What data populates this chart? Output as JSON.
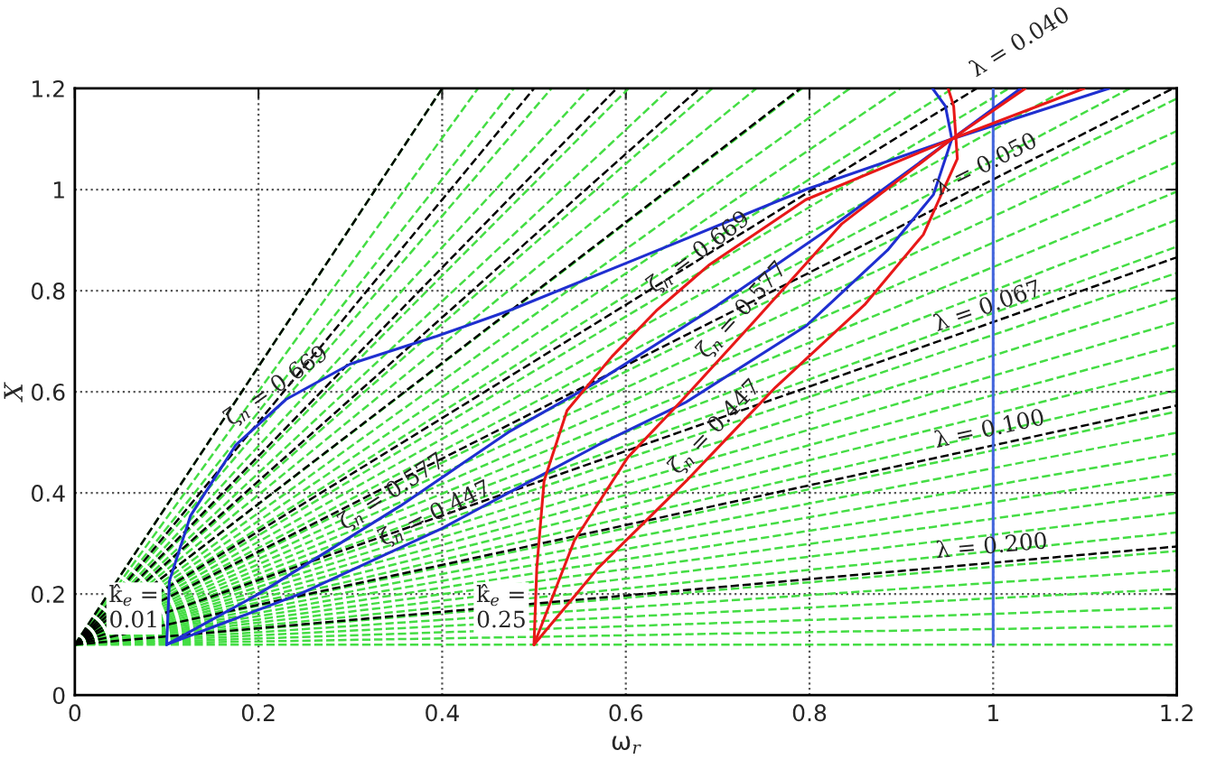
{
  "chart_data": {
    "type": "line",
    "xlabel": "ω$_{r}$",
    "ylabel": "X",
    "xlim": [
      0,
      1.2
    ],
    "ylim": [
      0,
      1.2
    ],
    "xticks": [
      0,
      0.2,
      0.4,
      0.6,
      0.8,
      1,
      1.2
    ],
    "yticks": [
      0,
      0.2,
      0.4,
      0.6,
      0.8,
      1,
      1.2
    ],
    "grid": true,
    "series": [
      {
        "color": "#44dd44",
        "line_style": "dashed",
        "x": [
          0,
          1.2
        ],
        "values": [
          0.1,
          0.1
        ]
      },
      {
        "color": "#44dd44",
        "line_style": "dashed",
        "x": [
          0,
          1.2
        ],
        "values": [
          0.1,
          0.137
        ]
      },
      {
        "color": "#44dd44",
        "line_style": "dashed",
        "x": [
          0,
          1.2
        ],
        "values": [
          0.1,
          0.173
        ]
      },
      {
        "color": "#44dd44",
        "line_style": "dashed",
        "x": [
          0,
          1.2
        ],
        "values": [
          0.1,
          0.21
        ]
      },
      {
        "color": "#44dd44",
        "line_style": "dashed",
        "x": [
          0,
          1.2
        ],
        "values": [
          0.1,
          0.247
        ]
      },
      {
        "color": "#44dd44",
        "line_style": "dashed",
        "x": [
          0,
          1.2
        ],
        "values": [
          0.1,
          0.285
        ]
      },
      {
        "color": "#44dd44",
        "line_style": "dashed",
        "x": [
          0,
          1.2
        ],
        "values": [
          0.1,
          0.322
        ]
      },
      {
        "color": "#44dd44",
        "line_style": "dashed",
        "x": [
          0,
          1.2
        ],
        "values": [
          0.1,
          0.361
        ]
      },
      {
        "color": "#44dd44",
        "line_style": "dashed",
        "x": [
          0,
          1.2
        ],
        "values": [
          0.1,
          0.399
        ]
      },
      {
        "color": "#44dd44",
        "line_style": "dashed",
        "x": [
          0,
          1.2
        ],
        "values": [
          0.1,
          0.438
        ]
      },
      {
        "color": "#44dd44",
        "line_style": "dashed",
        "x": [
          0,
          1.2
        ],
        "values": [
          0.1,
          0.478
        ]
      },
      {
        "color": "#44dd44",
        "line_style": "dashed",
        "x": [
          0,
          1.2
        ],
        "values": [
          0.1,
          0.519
        ]
      },
      {
        "color": "#44dd44",
        "line_style": "dashed",
        "x": [
          0,
          1.2
        ],
        "values": [
          0.1,
          0.561
        ]
      },
      {
        "color": "#44dd44",
        "line_style": "dashed",
        "x": [
          0,
          1.2
        ],
        "values": [
          0.1,
          0.603
        ]
      },
      {
        "color": "#44dd44",
        "line_style": "dashed",
        "x": [
          0,
          1.2
        ],
        "values": [
          0.1,
          0.647
        ]
      },
      {
        "color": "#44dd44",
        "line_style": "dashed",
        "x": [
          0,
          1.2
        ],
        "values": [
          0.1,
          0.692
        ]
      },
      {
        "color": "#44dd44",
        "line_style": "dashed",
        "x": [
          0,
          1.2
        ],
        "values": [
          0.1,
          0.738
        ]
      },
      {
        "color": "#44dd44",
        "line_style": "dashed",
        "x": [
          0,
          1.2
        ],
        "values": [
          0.1,
          0.786
        ]
      },
      {
        "color": "#44dd44",
        "line_style": "dashed",
        "x": [
          0,
          1.2
        ],
        "values": [
          0.1,
          0.835
        ]
      },
      {
        "color": "#44dd44",
        "line_style": "dashed",
        "x": [
          0,
          1.2
        ],
        "values": [
          0.1,
          0.887
        ]
      },
      {
        "color": "#44dd44",
        "line_style": "dashed",
        "x": [
          0,
          1.2
        ],
        "values": [
          0.1,
          0.94
        ]
      },
      {
        "color": "#44dd44",
        "line_style": "dashed",
        "x": [
          0,
          1.2
        ],
        "values": [
          0.1,
          0.996
        ]
      },
      {
        "color": "#44dd44",
        "line_style": "dashed",
        "x": [
          0,
          1.2
        ],
        "values": [
          0.1,
          1.054
        ]
      },
      {
        "color": "#44dd44",
        "line_style": "dashed",
        "x": [
          0,
          1.2
        ],
        "values": [
          0.1,
          1.116
        ]
      },
      {
        "color": "#44dd44",
        "line_style": "dashed",
        "x": [
          0,
          1.2
        ],
        "values": [
          0.1,
          1.18
        ]
      },
      {
        "color": "#44dd44",
        "line_style": "dashed",
        "x": [
          0,
          1.149
        ],
        "values": [
          0.1,
          1.2
        ]
      },
      {
        "color": "#44dd44",
        "line_style": "dashed",
        "x": [
          0,
          1.081
        ],
        "values": [
          0.1,
          1.2
        ]
      },
      {
        "color": "#44dd44",
        "line_style": "dashed",
        "x": [
          0,
          1.017
        ],
        "values": [
          0.1,
          1.2
        ]
      },
      {
        "color": "#44dd44",
        "line_style": "dashed",
        "x": [
          0,
          0.956
        ],
        "values": [
          0.1,
          1.2
        ]
      },
      {
        "color": "#44dd44",
        "line_style": "dashed",
        "x": [
          0,
          0.899
        ],
        "values": [
          0.1,
          1.2
        ]
      },
      {
        "color": "#44dd44",
        "line_style": "dashed",
        "x": [
          0,
          0.844
        ],
        "values": [
          0.1,
          1.2
        ]
      },
      {
        "color": "#44dd44",
        "line_style": "dashed",
        "x": [
          0,
          0.792
        ],
        "values": [
          0.1,
          1.2
        ]
      },
      {
        "color": "#44dd44",
        "line_style": "dashed",
        "x": [
          0,
          0.742
        ],
        "values": [
          0.1,
          1.2
        ]
      },
      {
        "color": "#44dd44",
        "line_style": "dashed",
        "x": [
          0,
          0.694
        ],
        "values": [
          0.1,
          1.2
        ]
      },
      {
        "color": "#44dd44",
        "line_style": "dashed",
        "x": [
          0,
          0.648
        ],
        "values": [
          0.1,
          1.2
        ]
      },
      {
        "color": "#44dd44",
        "line_style": "dashed",
        "x": [
          0,
          0.603
        ],
        "values": [
          0.1,
          1.2
        ]
      },
      {
        "color": "#44dd44",
        "line_style": "dashed",
        "x": [
          0,
          0.56
        ],
        "values": [
          0.1,
          1.2
        ]
      },
      {
        "color": "#44dd44",
        "line_style": "dashed",
        "x": [
          0,
          0.519
        ],
        "values": [
          0.1,
          1.2
        ]
      },
      {
        "color": "#44dd44",
        "line_style": "dashed",
        "x": [
          0,
          0.478
        ],
        "values": [
          0.1,
          1.2
        ]
      },
      {
        "color": "#44dd44",
        "line_style": "dashed",
        "x": [
          0,
          0.439
        ],
        "values": [
          0.1,
          1.2
        ]
      },
      {
        "color": "#44dd44",
        "line_style": "dashed",
        "x": [
          0,
          0.4
        ],
        "values": [
          0.1,
          1.2
        ]
      },
      {
        "color": "#000000",
        "line_style": "dashed",
        "x": [
          0,
          0.79
        ],
        "values": [
          0.1,
          1.2
        ]
      },
      {
        "color": "#000000",
        "line_style": "dashed",
        "x": [
          0,
          0.68
        ],
        "values": [
          0.1,
          1.2
        ]
      },
      {
        "color": "#000000",
        "line_style": "dashed",
        "x": [
          0,
          0.59
        ],
        "values": [
          0.1,
          1.2
        ]
      },
      {
        "color": "#000000",
        "line_style": "dashed",
        "x": [
          0,
          0.5
        ],
        "values": [
          0.1,
          1.2
        ]
      },
      {
        "color": "#000000",
        "line_style": "dashed",
        "x": [
          0,
          0.4
        ],
        "values": [
          0.1,
          1.2
        ]
      },
      {
        "color": "#000000",
        "line_style": "dashed",
        "x": [
          0,
          1.0,
          1.2
        ],
        "values": [
          0.1,
          0.262,
          0.294
        ]
      },
      {
        "color": "#000000",
        "line_style": "dashed",
        "x": [
          0,
          1.0,
          1.2
        ],
        "values": [
          0.1,
          0.494,
          0.573
        ]
      },
      {
        "color": "#000000",
        "line_style": "dashed",
        "x": [
          0,
          1.0,
          1.2
        ],
        "values": [
          0.1,
          0.738,
          0.866
        ]
      },
      {
        "color": "#000000",
        "line_style": "dashed",
        "x": [
          0,
          1.0,
          1.196
        ],
        "values": [
          0.1,
          1.02,
          1.2
        ]
      },
      {
        "color": "#000000",
        "line_style": "dashed",
        "x": [
          0,
          0.982
        ],
        "values": [
          0.1,
          1.2
        ]
      },
      {
        "color": "#4466dd",
        "line_style": "solid",
        "x": [
          1,
          1
        ],
        "values": [
          0.1,
          1.2
        ]
      },
      {
        "color": "#1f2fd0",
        "line_style": "solid",
        "x": [
          0.1,
          0.103,
          0.126,
          0.175,
          0.23,
          0.3,
          0.394,
          0.472,
          0.608,
          0.796,
          0.955,
          1.126
        ],
        "values": [
          0.1,
          0.226,
          0.355,
          0.494,
          0.585,
          0.655,
          0.71,
          0.76,
          0.86,
          1.0,
          1.1,
          1.2
        ]
      },
      {
        "color": "#1f2fd0",
        "line_style": "solid",
        "x": [
          0.1,
          0.2,
          0.355,
          0.472,
          0.569,
          0.699,
          0.827,
          0.955,
          1.03
        ],
        "values": [
          0.1,
          0.2,
          0.375,
          0.52,
          0.62,
          0.77,
          0.93,
          1.1,
          1.2
        ]
      },
      {
        "color": "#1f2fd0",
        "line_style": "solid",
        "x": [
          0.1,
          0.245,
          0.4,
          0.472,
          0.569,
          0.666,
          0.796,
          0.885,
          0.935,
          0.955,
          0.948,
          0.934
        ],
        "values": [
          0.1,
          0.2,
          0.33,
          0.4,
          0.494,
          0.58,
          0.73,
          0.88,
          0.99,
          1.1,
          1.165,
          1.2
        ]
      },
      {
        "color": "#e81818",
        "line_style": "solid",
        "x": [
          0.5,
          0.503,
          0.511,
          0.536,
          0.585,
          0.633,
          0.69,
          0.796,
          0.955,
          1.099
        ],
        "values": [
          0.1,
          0.25,
          0.424,
          0.563,
          0.67,
          0.76,
          0.85,
          0.98,
          1.1,
          1.2
        ]
      },
      {
        "color": "#e81818",
        "line_style": "solid",
        "x": [
          0.5,
          0.544,
          0.602,
          0.66,
          0.74,
          0.835,
          0.955,
          1.035
        ],
        "values": [
          0.1,
          0.306,
          0.47,
          0.581,
          0.74,
          0.932,
          1.1,
          1.2
        ]
      },
      {
        "color": "#e81818",
        "line_style": "solid",
        "x": [
          0.5,
          0.569,
          0.666,
          0.71,
          0.763,
          0.86,
          0.924,
          0.961,
          0.957,
          0.951
        ],
        "values": [
          0.1,
          0.25,
          0.424,
          0.508,
          0.609,
          0.772,
          0.911,
          1.061,
          1.165,
          1.2
        ]
      }
    ],
    "annotations": [
      {
        "text": "k̂$_{e}$ =\n0.01",
        "x": 0.1,
        "y": 0.1
      },
      {
        "text": "k̂$_{e}$ =\n0.25",
        "x": 0.5,
        "y": 0.1
      },
      {
        "text": "ζ$_{n}$ = 0.669",
        "x": 0.23,
        "y": 0.585
      },
      {
        "text": "ζ$_{n}$ = 0.577",
        "x": 0.355,
        "y": 0.375
      },
      {
        "text": "ζ$_{n}$ = 0.447",
        "x": 0.4,
        "y": 0.33
      },
      {
        "text": "ζ$_{n}$ = 0.669",
        "x": 0.69,
        "y": 0.85
      },
      {
        "text": "ζ$_{n}$ = 0.577",
        "x": 0.74,
        "y": 0.74
      },
      {
        "text": "ζ$_{n}$ = 0.447",
        "x": 0.71,
        "y": 0.508
      },
      {
        "text": "λ = 0.200",
        "x": 1.0,
        "y": 0.262
      },
      {
        "text": "λ = 0.100",
        "x": 1.0,
        "y": 0.494
      },
      {
        "text": "λ = 0.067",
        "x": 1.0,
        "y": 0.738
      },
      {
        "text": "λ = 0.050",
        "x": 1.0,
        "y": 1.02
      },
      {
        "text": "λ = 0.040",
        "x": 0.982,
        "y": 1.2
      }
    ]
  }
}
